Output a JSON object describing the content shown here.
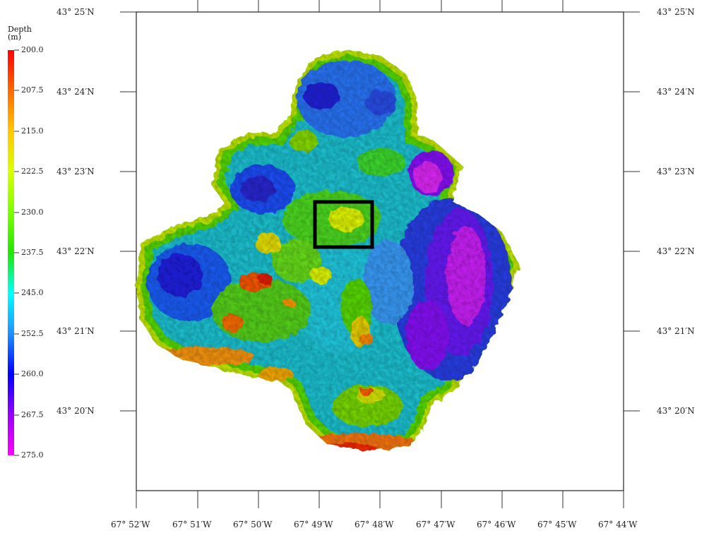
{
  "legend": {
    "title_line1": "Depth",
    "title_line2": "(m)",
    "ticks": [
      "200.0",
      "207.5",
      "215.0",
      "222.5",
      "230.0",
      "237.5",
      "245.0",
      "252.5",
      "260.0",
      "267.5",
      "275.0"
    ],
    "colors": [
      "#ff0000",
      "#ff6a00",
      "#ffc800",
      "#d8ff00",
      "#7cff00",
      "#20e800",
      "#00ffff",
      "#1e90ff",
      "#0000ff",
      "#9a00ff",
      "#ff00ff"
    ]
  },
  "axes": {
    "lat_labels": [
      "43° 25′N",
      "43° 24′N",
      "43° 23′N",
      "43° 22′N",
      "43° 21′N",
      "43° 20′N"
    ],
    "lon_labels": [
      "67° 52′W",
      "67° 51′W",
      "67° 50′W",
      "67° 49′W",
      "67° 48′W",
      "67° 47′W",
      "67° 46′W",
      "67° 45′W",
      "67° 44′W"
    ]
  },
  "map": {
    "type": "bathymetry-shaded-relief",
    "lat_range": [
      43.317,
      43.417
    ],
    "lon_range": [
      67.733,
      67.867
    ],
    "highlight_box": "study area (black rectangle)"
  }
}
